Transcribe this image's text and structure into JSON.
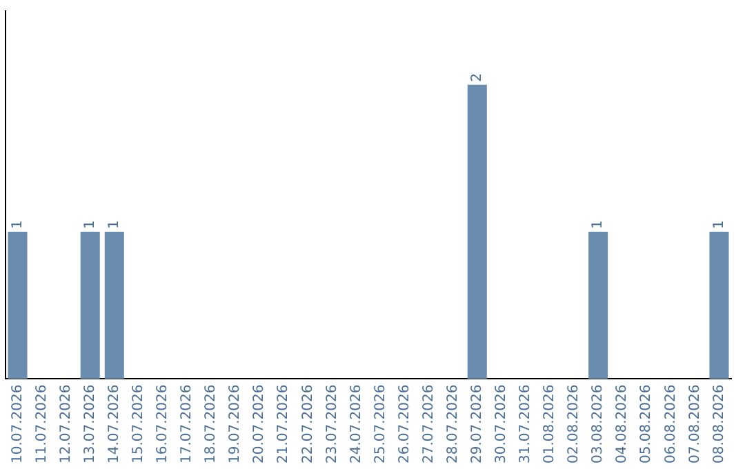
{
  "chart_data": {
    "type": "bar",
    "categories": [
      "10.07.2026",
      "11.07.2026",
      "12.07.2026",
      "13.07.2026",
      "14.07.2026",
      "15.07.2026",
      "16.07.2026",
      "17.07.2026",
      "18.07.2026",
      "19.07.2026",
      "20.07.2026",
      "21.07.2026",
      "22.07.2026",
      "23.07.2026",
      "24.07.2026",
      "25.07.2026",
      "26.07.2026",
      "27.07.2026",
      "28.07.2026",
      "29.07.2026",
      "30.07.2026",
      "31.07.2026",
      "01.08.2026",
      "02.08.2026",
      "03.08.2026",
      "04.08.2026",
      "05.08.2026",
      "06.08.2026",
      "07.08.2026",
      "08.08.2026"
    ],
    "values": [
      1,
      0,
      0,
      1,
      1,
      0,
      0,
      0,
      0,
      0,
      0,
      0,
      0,
      0,
      0,
      0,
      0,
      0,
      0,
      2,
      0,
      0,
      0,
      0,
      1,
      0,
      0,
      0,
      0,
      1
    ],
    "value_labels": [
      "1",
      null,
      null,
      "1",
      "1",
      null,
      null,
      null,
      null,
      null,
      null,
      null,
      null,
      null,
      null,
      null,
      null,
      null,
      null,
      "2",
      null,
      null,
      null,
      null,
      "1",
      null,
      null,
      null,
      null,
      "1"
    ],
    "color": "#6a8caf",
    "tick_labels": "x",
    "grid": false,
    "legend": false
  }
}
